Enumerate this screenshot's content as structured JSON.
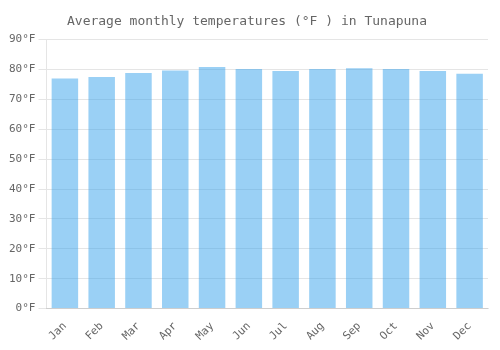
{
  "chart_data": {
    "type": "bar",
    "title": "Average monthly temperatures (°F ) in Tunapuna",
    "categories": [
      "Jan",
      "Feb",
      "Mar",
      "Apr",
      "May",
      "Jun",
      "Jul",
      "Aug",
      "Sep",
      "Oct",
      "Nov",
      "Dec"
    ],
    "values": [
      77.0,
      77.5,
      78.8,
      79.7,
      80.8,
      80.2,
      79.5,
      80.2,
      80.4,
      80.2,
      79.5,
      78.6
    ],
    "ylim": [
      0,
      90
    ],
    "yticks": [
      {
        "value": 0,
        "label": "0°F"
      },
      {
        "value": 10,
        "label": "10°F"
      },
      {
        "value": 20,
        "label": "20°F"
      },
      {
        "value": 30,
        "label": "30°F"
      },
      {
        "value": 40,
        "label": "40°F"
      },
      {
        "value": 50,
        "label": "50°F"
      },
      {
        "value": 60,
        "label": "60°F"
      },
      {
        "value": 70,
        "label": "70°F"
      },
      {
        "value": 80,
        "label": "80°F"
      },
      {
        "value": 90,
        "label": "90°F"
      }
    ],
    "grid": true
  }
}
